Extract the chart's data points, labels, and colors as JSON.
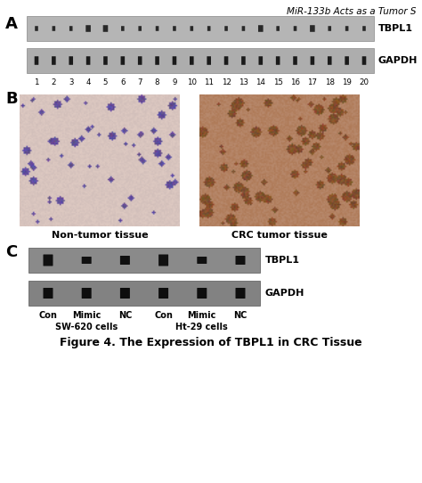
{
  "title_italic": "MiR-133b Acts as a Tumor S",
  "figure_caption": "Figure 4. The Expression of TBPL1 in CRC Tissue",
  "panel_A_label": "A",
  "panel_B_label": "B",
  "panel_C_label": "C",
  "panel_A_label1": "TBPL1",
  "panel_A_label2": "GAPDH",
  "panel_A_numbers": [
    "1",
    "2",
    "3",
    "4",
    "5",
    "6",
    "7",
    "8",
    "9",
    "10",
    "11",
    "12",
    "13",
    "14",
    "15",
    "16",
    "17",
    "18",
    "19",
    "20"
  ],
  "panel_B_label_left": "Non-tumor tissue",
  "panel_B_label_right": "CRC tumor tissue",
  "panel_C_label1": "TBPL1",
  "panel_C_label2": "GAPDH",
  "panel_C_row1": [
    "Con",
    "Mimic",
    "NC",
    "Con",
    "Mimic",
    "NC"
  ],
  "panel_C_row2_left": "SW-620 cells",
  "panel_C_row2_right": "Ht-29 cells",
  "bg_color": "#ffffff",
  "gel_A_color": "#b8b8b8",
  "gel_C_color": "#909090",
  "band_dark": "#222222",
  "band_darker": "#111111"
}
